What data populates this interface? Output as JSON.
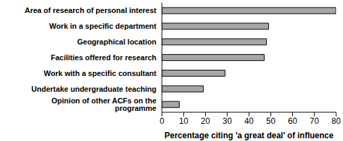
{
  "chart_data": {
    "type": "bar",
    "orientation": "horizontal",
    "categories": [
      "Area of research of personal interest",
      "Work in a specific department",
      "Geographical location",
      "Facilities offered for research",
      "Work with a specific consultant",
      "Undertake undergraduate teaching",
      "Opinion of other ACFs on the programme"
    ],
    "values": [
      80,
      49,
      48,
      47,
      29,
      19,
      8
    ],
    "color": "#a6a6a6",
    "xlabel": "Percentage citing 'a great deal' of influence",
    "xlim": [
      0,
      80
    ],
    "xticks": [
      0,
      10,
      20,
      30,
      40,
      50,
      60,
      70,
      80
    ],
    "grid": false
  }
}
